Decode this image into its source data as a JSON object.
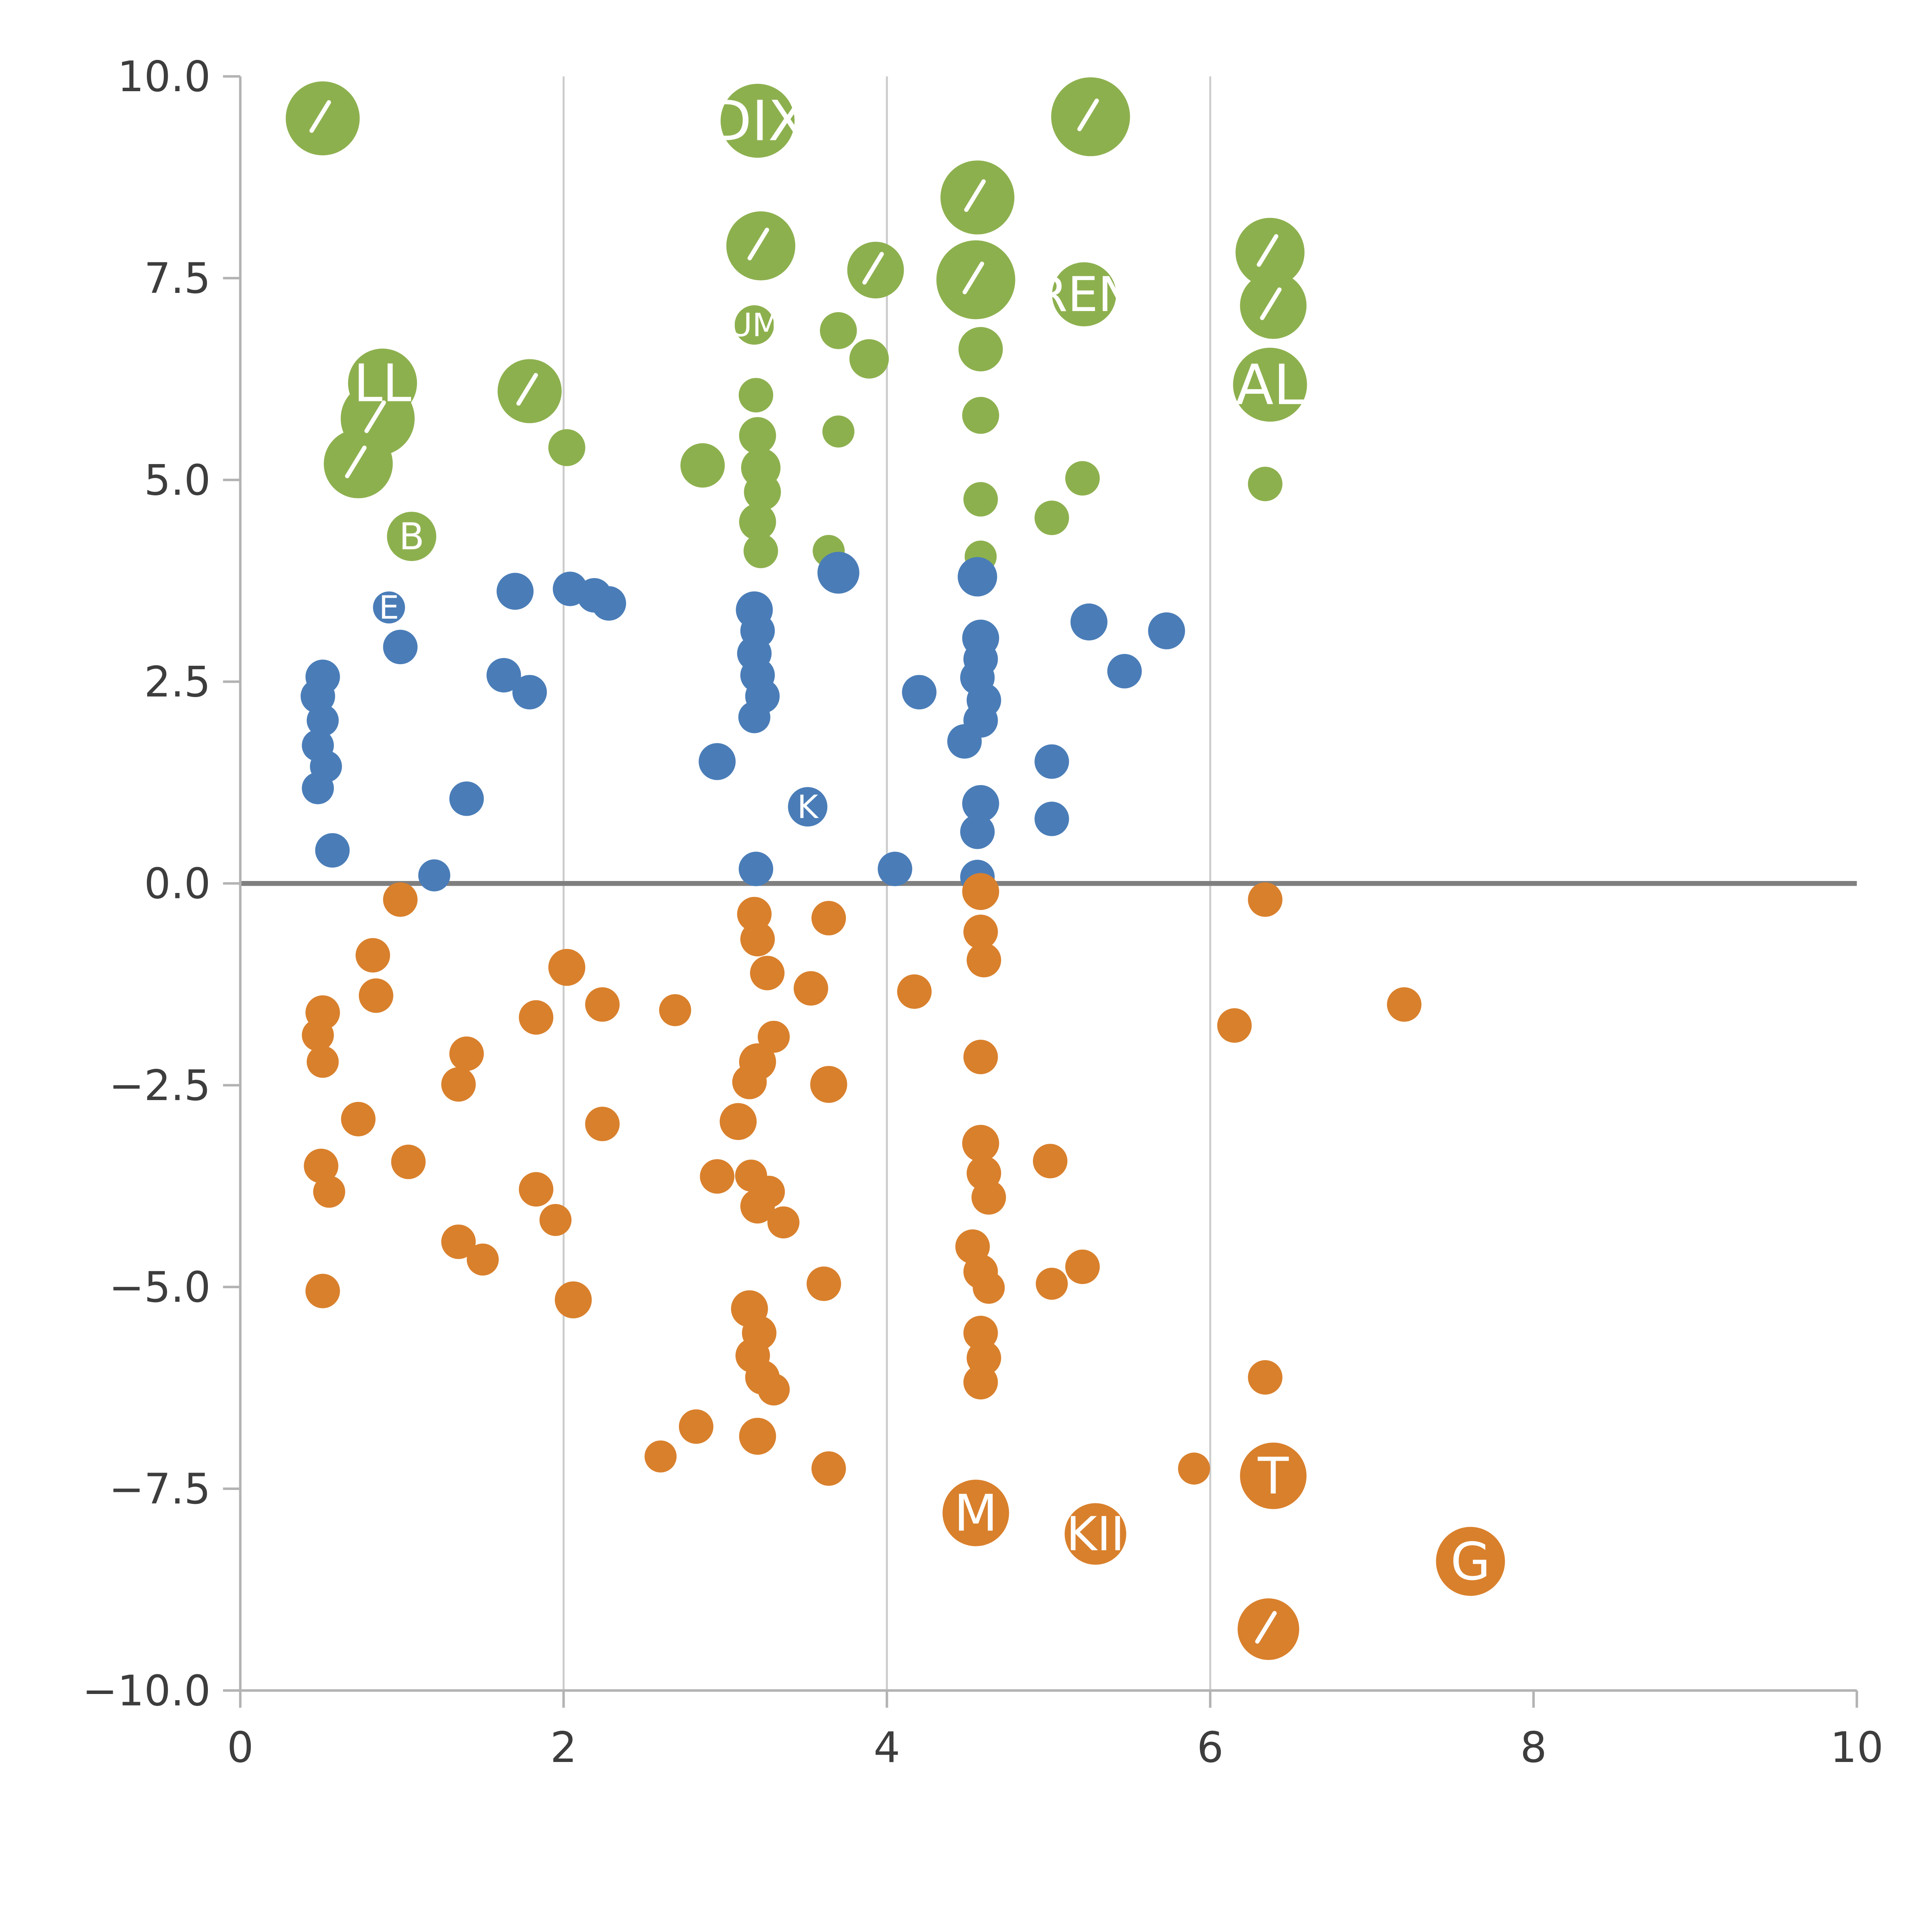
{
  "chart_data": {
    "type": "scatter",
    "title": "",
    "xlabel": "",
    "ylabel": "",
    "xlim": [
      0,
      10
    ],
    "ylim": [
      -10,
      10
    ],
    "grid": "vertical-only",
    "legend": "none",
    "x_ticks": [
      {
        "v": 0,
        "label": "0"
      },
      {
        "v": 2,
        "label": "2"
      },
      {
        "v": 4,
        "label": "4"
      },
      {
        "v": 6,
        "label": "6"
      },
      {
        "v": 8,
        "label": "8"
      },
      {
        "v": 10,
        "label": "10"
      }
    ],
    "y_ticks": [
      {
        "v": 10,
        "label": "10.0"
      },
      {
        "v": 7.5,
        "label": "7.5"
      },
      {
        "v": 5,
        "label": "5.0"
      },
      {
        "v": 2.5,
        "label": "2.5"
      },
      {
        "v": 0,
        "label": "0.0"
      },
      {
        "v": -2.5,
        "label": "−2.5"
      },
      {
        "v": -5,
        "label": "−5.0"
      },
      {
        "v": -7.5,
        "label": "−7.5"
      },
      {
        "v": -10,
        "label": "−10.0"
      }
    ],
    "gridlines_x": [
      2,
      4,
      6
    ],
    "zero_line": true,
    "colors": {
      "grid": "#cccccc",
      "spine": "#b3b3b3",
      "zero_line": "#7f7f7f",
      "tick_label": "#3d3d3d",
      "bubble_label": "#ffffff",
      "green": "#8db04e",
      "blue": "#4a7db8",
      "orange": "#d9802c"
    },
    "series": [
      {
        "name": "green",
        "color": "#8db04e",
        "points": [
          {
            "x": 0.51,
            "y": 9.48,
            "r": 30,
            "tick": true
          },
          {
            "x": 3.2,
            "y": 9.45,
            "r": 30,
            "label": "DIX"
          },
          {
            "x": 5.26,
            "y": 9.5,
            "r": 32,
            "tick": true
          },
          {
            "x": 4.56,
            "y": 8.5,
            "r": 30,
            "tick": true
          },
          {
            "x": 3.22,
            "y": 7.9,
            "r": 28,
            "tick": true
          },
          {
            "x": 4.55,
            "y": 7.48,
            "r": 32,
            "tick": true
          },
          {
            "x": 3.93,
            "y": 7.6,
            "r": 23,
            "tick": true
          },
          {
            "x": 5.22,
            "y": 7.3,
            "r": 26,
            "label": "REN"
          },
          {
            "x": 6.37,
            "y": 7.82,
            "r": 28,
            "tick": true
          },
          {
            "x": 6.39,
            "y": 7.16,
            "r": 27,
            "tick": true
          },
          {
            "x": 3.7,
            "y": 6.85,
            "r": 15
          },
          {
            "x": 3.89,
            "y": 6.5,
            "r": 16
          },
          {
            "x": 4.58,
            "y": 6.62,
            "r": 18
          },
          {
            "x": 3.18,
            "y": 6.92,
            "r": 16,
            "label": "UM"
          },
          {
            "x": 6.37,
            "y": 6.18,
            "r": 30,
            "label": "AL"
          },
          {
            "x": 0.88,
            "y": 6.2,
            "r": 28,
            "label": "LL"
          },
          {
            "x": 1.79,
            "y": 6.1,
            "r": 26,
            "tick": true
          },
          {
            "x": 0.85,
            "y": 5.76,
            "r": 30,
            "tick": true
          },
          {
            "x": 0.73,
            "y": 5.2,
            "r": 28,
            "tick": true
          },
          {
            "x": 3.19,
            "y": 6.05,
            "r": 14
          },
          {
            "x": 4.58,
            "y": 5.8,
            "r": 15
          },
          {
            "x": 3.7,
            "y": 5.6,
            "r": 13
          },
          {
            "x": 2.02,
            "y": 5.4,
            "r": 15
          },
          {
            "x": 2.86,
            "y": 5.18,
            "r": 18
          },
          {
            "x": 3.2,
            "y": 5.55,
            "r": 15
          },
          {
            "x": 3.22,
            "y": 5.15,
            "r": 16
          },
          {
            "x": 3.23,
            "y": 4.85,
            "r": 15
          },
          {
            "x": 3.2,
            "y": 4.48,
            "r": 15
          },
          {
            "x": 3.22,
            "y": 4.12,
            "r": 14
          },
          {
            "x": 4.58,
            "y": 4.76,
            "r": 14
          },
          {
            "x": 5.02,
            "y": 4.53,
            "r": 14
          },
          {
            "x": 5.21,
            "y": 5.02,
            "r": 14
          },
          {
            "x": 6.34,
            "y": 4.95,
            "r": 14
          },
          {
            "x": 1.06,
            "y": 4.3,
            "r": 20,
            "label": "B"
          },
          {
            "x": 3.64,
            "y": 4.12,
            "r": 13
          },
          {
            "x": 4.58,
            "y": 4.05,
            "r": 13
          }
        ]
      },
      {
        "name": "blue",
        "color": "#4a7db8",
        "points": [
          {
            "x": 1.7,
            "y": 3.62,
            "r": 15
          },
          {
            "x": 2.04,
            "y": 3.65,
            "r": 14
          },
          {
            "x": 2.19,
            "y": 3.57,
            "r": 14
          },
          {
            "x": 2.28,
            "y": 3.47,
            "r": 14
          },
          {
            "x": 0.92,
            "y": 3.42,
            "r": 13,
            "label": "E"
          },
          {
            "x": 0.99,
            "y": 2.93,
            "r": 14
          },
          {
            "x": 0.51,
            "y": 2.56,
            "r": 14
          },
          {
            "x": 0.48,
            "y": 2.32,
            "r": 14
          },
          {
            "x": 0.51,
            "y": 2.02,
            "r": 13
          },
          {
            "x": 0.48,
            "y": 1.71,
            "r": 13
          },
          {
            "x": 0.53,
            "y": 1.45,
            "r": 13
          },
          {
            "x": 0.48,
            "y": 1.18,
            "r": 13
          },
          {
            "x": 1.63,
            "y": 2.58,
            "r": 14
          },
          {
            "x": 1.79,
            "y": 2.37,
            "r": 14
          },
          {
            "x": 1.4,
            "y": 1.05,
            "r": 14
          },
          {
            "x": 3.18,
            "y": 3.39,
            "r": 15
          },
          {
            "x": 3.2,
            "y": 3.13,
            "r": 14
          },
          {
            "x": 3.18,
            "y": 2.85,
            "r": 14
          },
          {
            "x": 3.2,
            "y": 2.58,
            "r": 14
          },
          {
            "x": 3.23,
            "y": 2.32,
            "r": 14
          },
          {
            "x": 3.18,
            "y": 2.06,
            "r": 13
          },
          {
            "x": 2.95,
            "y": 1.51,
            "r": 15
          },
          {
            "x": 3.7,
            "y": 3.85,
            "r": 17
          },
          {
            "x": 4.56,
            "y": 3.8,
            "r": 16
          },
          {
            "x": 4.58,
            "y": 3.04,
            "r": 15
          },
          {
            "x": 4.58,
            "y": 2.78,
            "r": 14
          },
          {
            "x": 4.56,
            "y": 2.55,
            "r": 14
          },
          {
            "x": 4.6,
            "y": 2.27,
            "r": 14
          },
          {
            "x": 4.58,
            "y": 2.02,
            "r": 14
          },
          {
            "x": 4.48,
            "y": 1.76,
            "r": 14
          },
          {
            "x": 4.2,
            "y": 2.37,
            "r": 14
          },
          {
            "x": 5.25,
            "y": 3.24,
            "r": 15
          },
          {
            "x": 5.47,
            "y": 2.63,
            "r": 14
          },
          {
            "x": 5.73,
            "y": 3.13,
            "r": 15
          },
          {
            "x": 5.02,
            "y": 1.51,
            "r": 14
          },
          {
            "x": 3.51,
            "y": 0.95,
            "r": 16,
            "label": "K"
          },
          {
            "x": 4.58,
            "y": 0.99,
            "r": 15
          },
          {
            "x": 4.56,
            "y": 0.64,
            "r": 14
          },
          {
            "x": 5.02,
            "y": 0.8,
            "r": 14
          },
          {
            "x": 0.57,
            "y": 0.41,
            "r": 14
          },
          {
            "x": 1.2,
            "y": 0.1,
            "r": 13
          },
          {
            "x": 3.19,
            "y": 0.18,
            "r": 14
          },
          {
            "x": 4.05,
            "y": 0.18,
            "r": 14
          },
          {
            "x": 4.56,
            "y": 0.08,
            "r": 14
          }
        ]
      },
      {
        "name": "orange",
        "color": "#d9802c",
        "points": [
          {
            "x": 0.99,
            "y": -0.2,
            "r": 14
          },
          {
            "x": 4.58,
            "y": -0.1,
            "r": 15
          },
          {
            "x": 6.34,
            "y": -0.2,
            "r": 14
          },
          {
            "x": 0.82,
            "y": -0.89,
            "r": 14
          },
          {
            "x": 2.02,
            "y": -1.04,
            "r": 15
          },
          {
            "x": 3.18,
            "y": -0.38,
            "r": 14
          },
          {
            "x": 3.2,
            "y": -0.69,
            "r": 14
          },
          {
            "x": 3.26,
            "y": -1.11,
            "r": 14
          },
          {
            "x": 3.64,
            "y": -0.43,
            "r": 14
          },
          {
            "x": 3.53,
            "y": -1.3,
            "r": 14
          },
          {
            "x": 0.84,
            "y": -1.39,
            "r": 14
          },
          {
            "x": 0.51,
            "y": -1.6,
            "r": 14
          },
          {
            "x": 0.48,
            "y": -1.88,
            "r": 13
          },
          {
            "x": 0.51,
            "y": -2.21,
            "r": 13
          },
          {
            "x": 2.24,
            "y": -1.5,
            "r": 14
          },
          {
            "x": 2.69,
            "y": -1.57,
            "r": 13
          },
          {
            "x": 1.83,
            "y": -1.66,
            "r": 14
          },
          {
            "x": 4.17,
            "y": -1.34,
            "r": 14
          },
          {
            "x": 4.58,
            "y": -0.6,
            "r": 14
          },
          {
            "x": 4.6,
            "y": -0.95,
            "r": 14
          },
          {
            "x": 6.15,
            "y": -1.76,
            "r": 14
          },
          {
            "x": 7.2,
            "y": -1.5,
            "r": 14
          },
          {
            "x": 4.58,
            "y": -2.15,
            "r": 14
          },
          {
            "x": 3.3,
            "y": -1.9,
            "r": 13
          },
          {
            "x": 3.2,
            "y": -2.21,
            "r": 15
          },
          {
            "x": 3.15,
            "y": -2.46,
            "r": 14
          },
          {
            "x": 1.4,
            "y": -2.11,
            "r": 14
          },
          {
            "x": 1.35,
            "y": -2.49,
            "r": 14
          },
          {
            "x": 0.73,
            "y": -2.92,
            "r": 14
          },
          {
            "x": 1.04,
            "y": -3.45,
            "r": 14
          },
          {
            "x": 0.5,
            "y": -3.5,
            "r": 14
          },
          {
            "x": 0.55,
            "y": -3.82,
            "r": 13
          },
          {
            "x": 2.24,
            "y": -2.98,
            "r": 14
          },
          {
            "x": 3.08,
            "y": -2.95,
            "r": 15
          },
          {
            "x": 3.64,
            "y": -2.49,
            "r": 15
          },
          {
            "x": 2.95,
            "y": -3.63,
            "r": 14
          },
          {
            "x": 3.16,
            "y": -3.62,
            "r": 13
          },
          {
            "x": 3.27,
            "y": -3.82,
            "r": 13
          },
          {
            "x": 3.2,
            "y": -4.0,
            "r": 14
          },
          {
            "x": 3.36,
            "y": -4.2,
            "r": 13
          },
          {
            "x": 1.83,
            "y": -3.79,
            "r": 14
          },
          {
            "x": 1.95,
            "y": -4.17,
            "r": 13
          },
          {
            "x": 4.58,
            "y": -3.22,
            "r": 15
          },
          {
            "x": 4.6,
            "y": -3.59,
            "r": 14
          },
          {
            "x": 4.63,
            "y": -3.89,
            "r": 14
          },
          {
            "x": 5.01,
            "y": -3.44,
            "r": 14
          },
          {
            "x": 4.53,
            "y": -4.5,
            "r": 14
          },
          {
            "x": 4.58,
            "y": -4.81,
            "r": 14
          },
          {
            "x": 4.63,
            "y": -5.01,
            "r": 13
          },
          {
            "x": 5.02,
            "y": -4.96,
            "r": 13
          },
          {
            "x": 5.21,
            "y": -4.75,
            "r": 14
          },
          {
            "x": 1.35,
            "y": -4.44,
            "r": 14
          },
          {
            "x": 1.5,
            "y": -4.66,
            "r": 13
          },
          {
            "x": 2.06,
            "y": -5.16,
            "r": 15
          },
          {
            "x": 0.51,
            "y": -5.05,
            "r": 14
          },
          {
            "x": 3.61,
            "y": -4.96,
            "r": 14
          },
          {
            "x": 3.15,
            "y": -5.27,
            "r": 15
          },
          {
            "x": 3.21,
            "y": -5.57,
            "r": 14
          },
          {
            "x": 3.17,
            "y": -5.85,
            "r": 14
          },
          {
            "x": 3.23,
            "y": -6.12,
            "r": 14
          },
          {
            "x": 3.3,
            "y": -6.27,
            "r": 13
          },
          {
            "x": 4.58,
            "y": -5.57,
            "r": 14
          },
          {
            "x": 4.6,
            "y": -5.88,
            "r": 14
          },
          {
            "x": 4.58,
            "y": -6.18,
            "r": 14
          },
          {
            "x": 2.82,
            "y": -6.73,
            "r": 14
          },
          {
            "x": 2.6,
            "y": -7.1,
            "r": 13
          },
          {
            "x": 3.2,
            "y": -6.85,
            "r": 15
          },
          {
            "x": 3.64,
            "y": -7.25,
            "r": 14
          },
          {
            "x": 6.34,
            "y": -6.12,
            "r": 14
          },
          {
            "x": 4.55,
            "y": -7.8,
            "r": 27,
            "label": "M"
          },
          {
            "x": 5.29,
            "y": -8.06,
            "r": 25,
            "label": "KII"
          },
          {
            "x": 6.39,
            "y": -7.34,
            "r": 27,
            "label": "T"
          },
          {
            "x": 5.9,
            "y": -7.25,
            "r": 13
          },
          {
            "x": 7.61,
            "y": -8.4,
            "r": 28,
            "label": "G"
          },
          {
            "x": 6.36,
            "y": -9.24,
            "r": 25,
            "tick": true
          }
        ]
      }
    ]
  }
}
